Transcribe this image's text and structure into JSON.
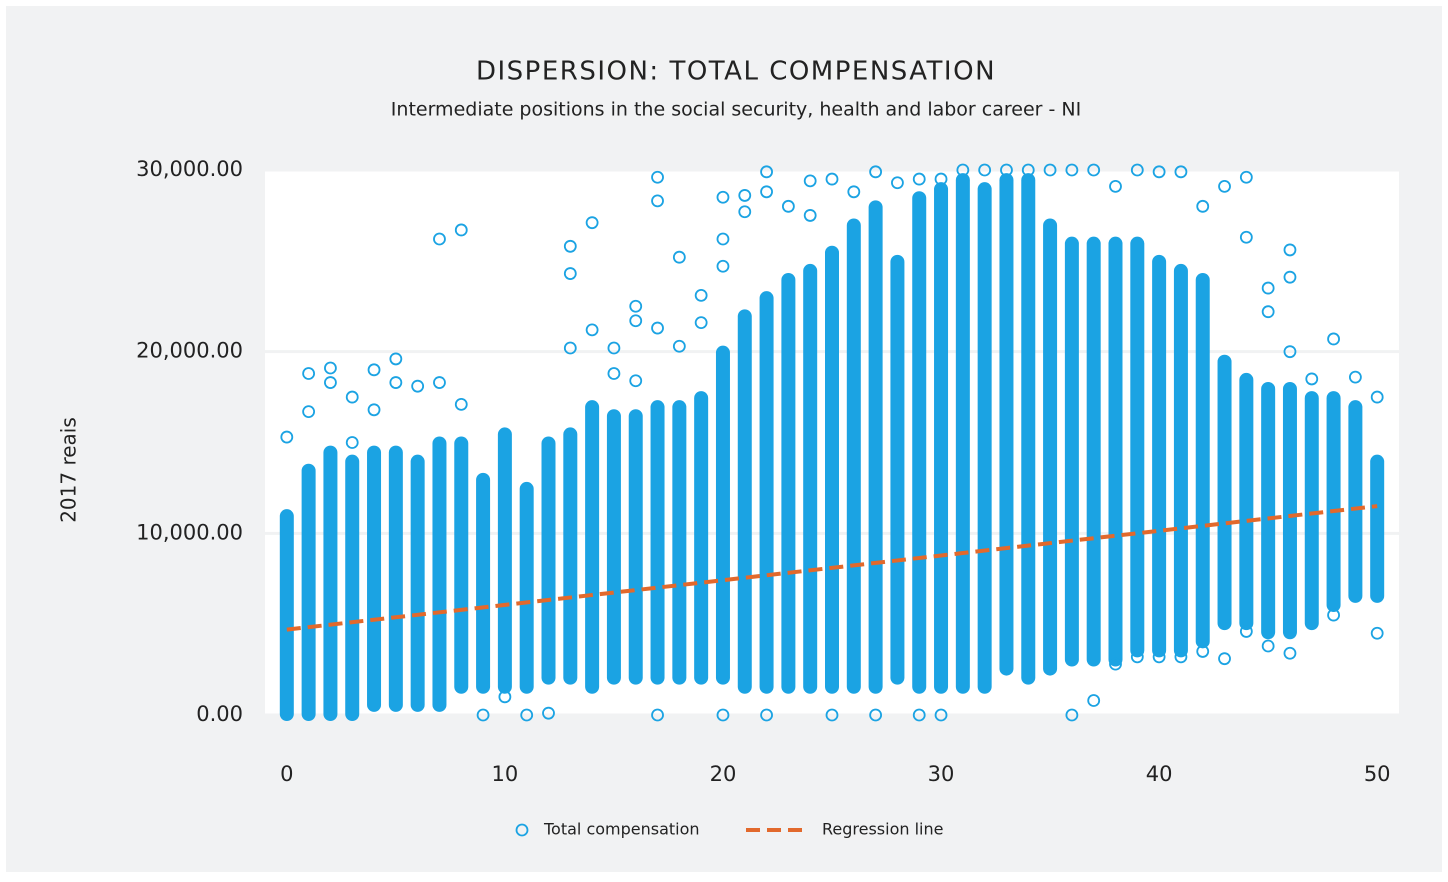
{
  "chart_data": {
    "type": "scatter",
    "title": "DISPERSION: TOTAL COMPENSATION",
    "subtitle": "Intermediate positions in the social security, health and labor career - NI",
    "y_label": "2017 reais",
    "xlim": [
      -1,
      51
    ],
    "xticks": [
      0,
      10,
      20,
      30,
      40,
      50
    ],
    "ylim": [
      0,
      30000
    ],
    "yticks": [
      {
        "value": 0,
        "label": "0.00"
      },
      {
        "value": 10000,
        "label": "10,000.00"
      },
      {
        "value": 20000,
        "label": "20,000.00"
      },
      {
        "value": 30000,
        "label": "30,000.00"
      }
    ],
    "grid": true,
    "legend": "bottom",
    "series": [
      {
        "name": "Total compensation",
        "color": "#1ba3e3",
        "x": [
          0,
          1,
          2,
          3,
          4,
          5,
          6,
          7,
          8,
          9,
          10,
          11,
          12,
          13,
          14,
          15,
          16,
          17,
          18,
          19,
          20,
          21,
          22,
          23,
          24,
          25,
          26,
          27,
          28,
          29,
          30,
          31,
          32,
          33,
          34,
          35,
          36,
          37,
          38,
          39,
          40,
          41,
          42,
          43,
          44,
          45,
          46,
          47,
          48,
          49,
          50
        ],
        "low": [
          0,
          0,
          0,
          0,
          500,
          500,
          500,
          500,
          1500,
          1500,
          1500,
          1500,
          2000,
          2000,
          1500,
          2000,
          2000,
          2000,
          2000,
          2000,
          2000,
          1500,
          1500,
          1500,
          1500,
          1500,
          1500,
          1500,
          2000,
          1500,
          1500,
          1500,
          1500,
          2500,
          2000,
          2500,
          3000,
          3000,
          3000,
          3500,
          3500,
          3500,
          4000,
          5000,
          5000,
          4500,
          4500,
          5000,
          6000,
          6500,
          6500
        ],
        "high": [
          11000,
          13500,
          14500,
          14000,
          14500,
          14500,
          14000,
          15000,
          15000,
          13000,
          15500,
          12500,
          15000,
          15500,
          17000,
          16500,
          16500,
          17000,
          17000,
          17500,
          20000,
          22000,
          23000,
          24000,
          24500,
          25500,
          27000,
          28000,
          25000,
          28500,
          29000,
          29500,
          29000,
          29500,
          29500,
          27000,
          26000,
          26000,
          26000,
          26000,
          25000,
          24500,
          24000,
          19500,
          18500,
          18000,
          18000,
          17500,
          17500,
          17000,
          14000
        ],
        "outlier_x": [
          0,
          1,
          1,
          2,
          2,
          3,
          3,
          4,
          4,
          5,
          5,
          6,
          7,
          7,
          8,
          8,
          9,
          10,
          11,
          12,
          13,
          13,
          13,
          14,
          14,
          15,
          15,
          16,
          16,
          16,
          17,
          17,
          17,
          17,
          18,
          18,
          19,
          19,
          20,
          20,
          20,
          20,
          21,
          21,
          22,
          22,
          22,
          23,
          24,
          24,
          25,
          25,
          26,
          27,
          27,
          28,
          29,
          29,
          30,
          30,
          31,
          32,
          33,
          34,
          35,
          36,
          36,
          37,
          37,
          38,
          38,
          39,
          39,
          40,
          40,
          41,
          41,
          42,
          42,
          43,
          43,
          44,
          44,
          44,
          45,
          45,
          45,
          46,
          46,
          46,
          46,
          47,
          48,
          48,
          49,
          50,
          50
        ],
        "outlier_values": [
          15300,
          18800,
          16700,
          19100,
          18300,
          17500,
          15000,
          19000,
          16800,
          19600,
          18300,
          18100,
          26200,
          18300,
          26700,
          17100,
          0,
          1000,
          0,
          100,
          25800,
          24300,
          20200,
          27100,
          21200,
          20200,
          18800,
          22500,
          21700,
          18400,
          29600,
          28300,
          21300,
          0,
          25200,
          20300,
          23100,
          21600,
          28500,
          26200,
          24700,
          0,
          28600,
          27700,
          29900,
          28800,
          0,
          28000,
          29400,
          27500,
          29500,
          0,
          28800,
          29900,
          0,
          29300,
          29500,
          0,
          29500,
          0,
          30000,
          30000,
          30000,
          30000,
          30000,
          30000,
          0,
          30000,
          800,
          29100,
          2800,
          30000,
          3200,
          29900,
          3200,
          29900,
          3200,
          28000,
          3500,
          29100,
          3100,
          29600,
          26300,
          4600,
          23500,
          22200,
          3800,
          25600,
          24100,
          20000,
          3400,
          18500,
          20700,
          5500,
          18600,
          17500,
          4500
        ]
      },
      {
        "name": "Regression line",
        "color": "#e2692c",
        "type": "line",
        "dashed": true,
        "x": [
          0,
          50
        ],
        "values": [
          4700,
          11500
        ]
      }
    ]
  }
}
